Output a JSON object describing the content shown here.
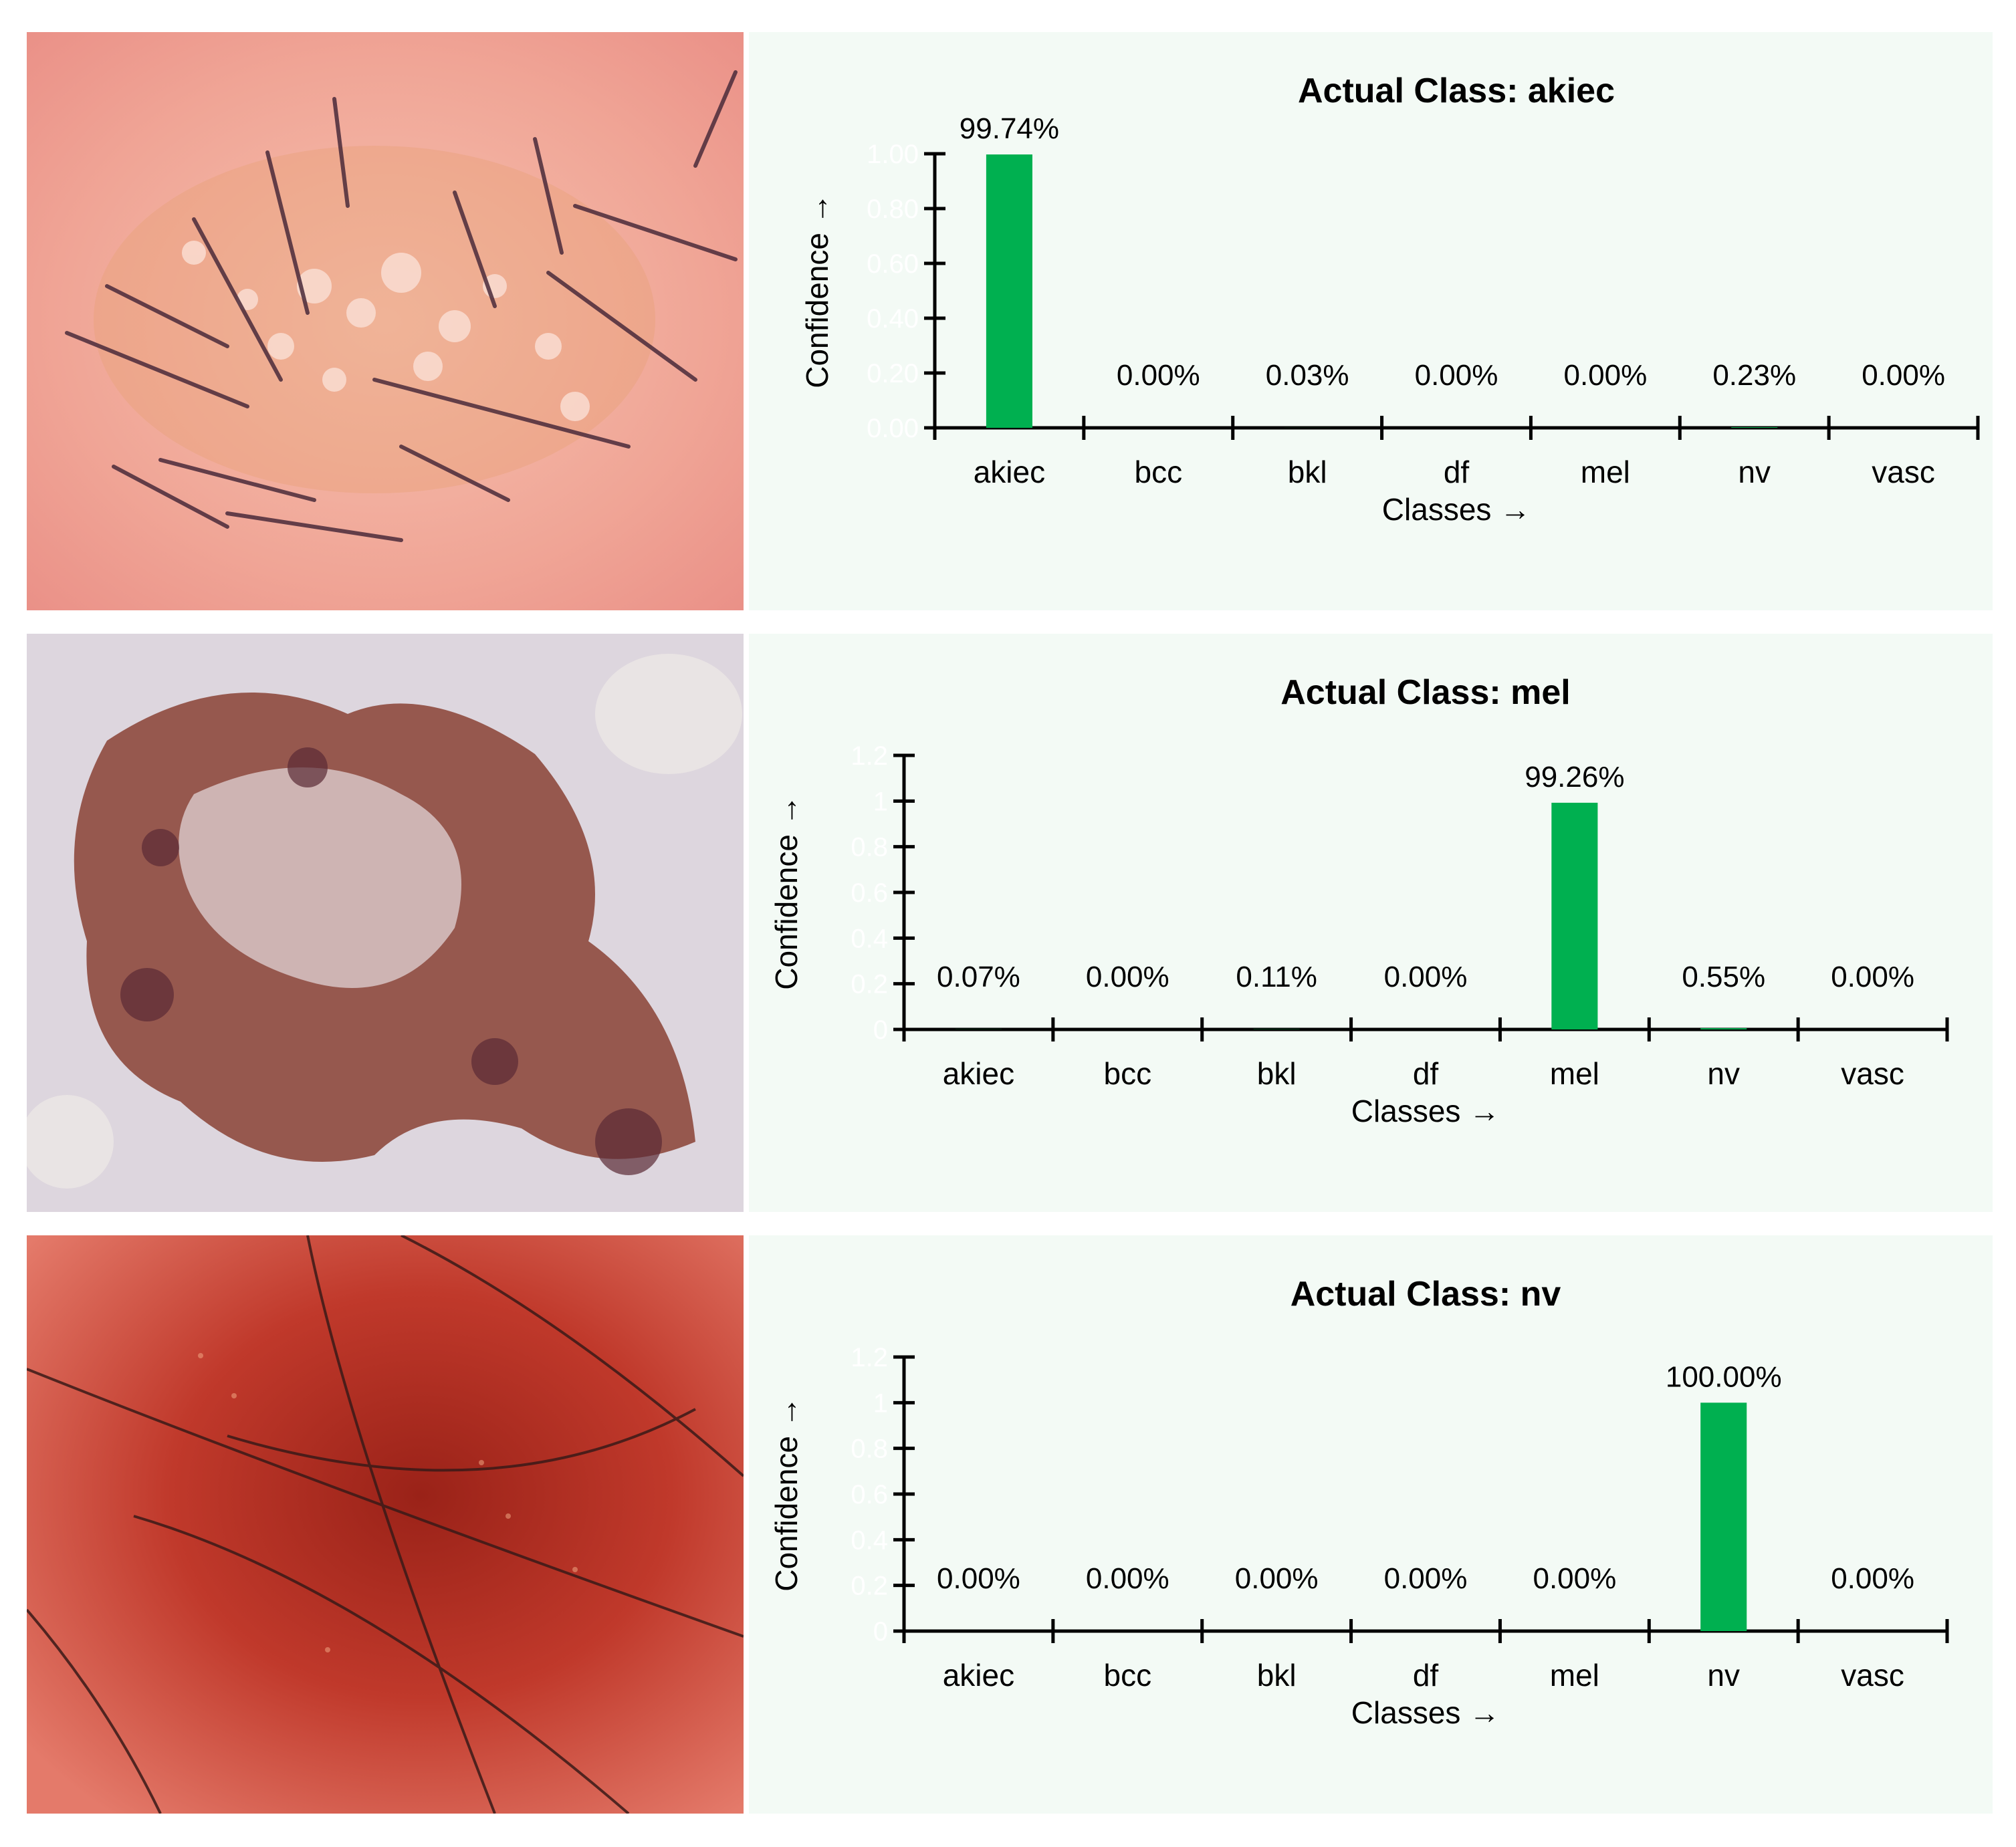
{
  "colors": {
    "bar": "#00b050",
    "axis": "#000000",
    "panel_background": "#f3faf5"
  },
  "panels": [
    {
      "photo": {
        "description_icon": "skin-lesion-photo",
        "tone": "akiec"
      },
      "chart_data": {
        "type": "bar",
        "title": "Actual Class: akiec",
        "xlabel": "Classes →",
        "ylabel": "Confidence →",
        "categories": [
          "akiec",
          "bcc",
          "bkl",
          "df",
          "mel",
          "nv",
          "vasc"
        ],
        "values": [
          0.9974,
          0.0,
          0.0003,
          0.0,
          0.0,
          0.0023,
          0.0
        ],
        "data_labels": [
          "99.74%",
          "0.00%",
          "0.03%",
          "0.00%",
          "0.00%",
          "0.23%",
          "0.00%"
        ],
        "ylim": [
          0,
          1.0
        ],
        "yticks": [
          "0.00",
          "0.20",
          "0.40",
          "0.60",
          "0.80",
          "1.00"
        ],
        "grid": false,
        "legend": "none"
      }
    },
    {
      "photo": {
        "description_icon": "skin-lesion-photo",
        "tone": "mel"
      },
      "chart_data": {
        "type": "bar",
        "title": "Actual Class: mel",
        "xlabel": "Classes →",
        "ylabel": "Confidence →",
        "categories": [
          "akiec",
          "bcc",
          "bkl",
          "df",
          "mel",
          "nv",
          "vasc"
        ],
        "values": [
          0.0007,
          0.0,
          0.0011,
          0.0,
          0.9926,
          0.0055,
          0.0
        ],
        "data_labels": [
          "0.07%",
          "0.00%",
          "0.11%",
          "0.00%",
          "99.26%",
          "0.55%",
          "0.00%"
        ],
        "ylim": [
          0,
          1.2
        ],
        "yticks": [
          "0",
          "0.2",
          "0.4",
          "0.6",
          "0.8",
          "1",
          "1.2"
        ],
        "grid": false,
        "legend": "none"
      }
    },
    {
      "photo": {
        "description_icon": "skin-lesion-photo",
        "tone": "nv"
      },
      "chart_data": {
        "type": "bar",
        "title": "Actual Class: nv",
        "xlabel": "Classes →",
        "ylabel": "Confidence →",
        "categories": [
          "akiec",
          "bcc",
          "bkl",
          "df",
          "mel",
          "nv",
          "vasc"
        ],
        "values": [
          0.0,
          0.0,
          0.0,
          0.0,
          0.0,
          1.0,
          0.0
        ],
        "data_labels": [
          "0.00%",
          "0.00%",
          "0.00%",
          "0.00%",
          "0.00%",
          "100.00%",
          "0.00%"
        ],
        "ylim": [
          0,
          1.2
        ],
        "yticks": [
          "0",
          "0.2",
          "0.4",
          "0.6",
          "0.8",
          "1",
          "1.2"
        ],
        "grid": false,
        "legend": "none"
      }
    }
  ]
}
